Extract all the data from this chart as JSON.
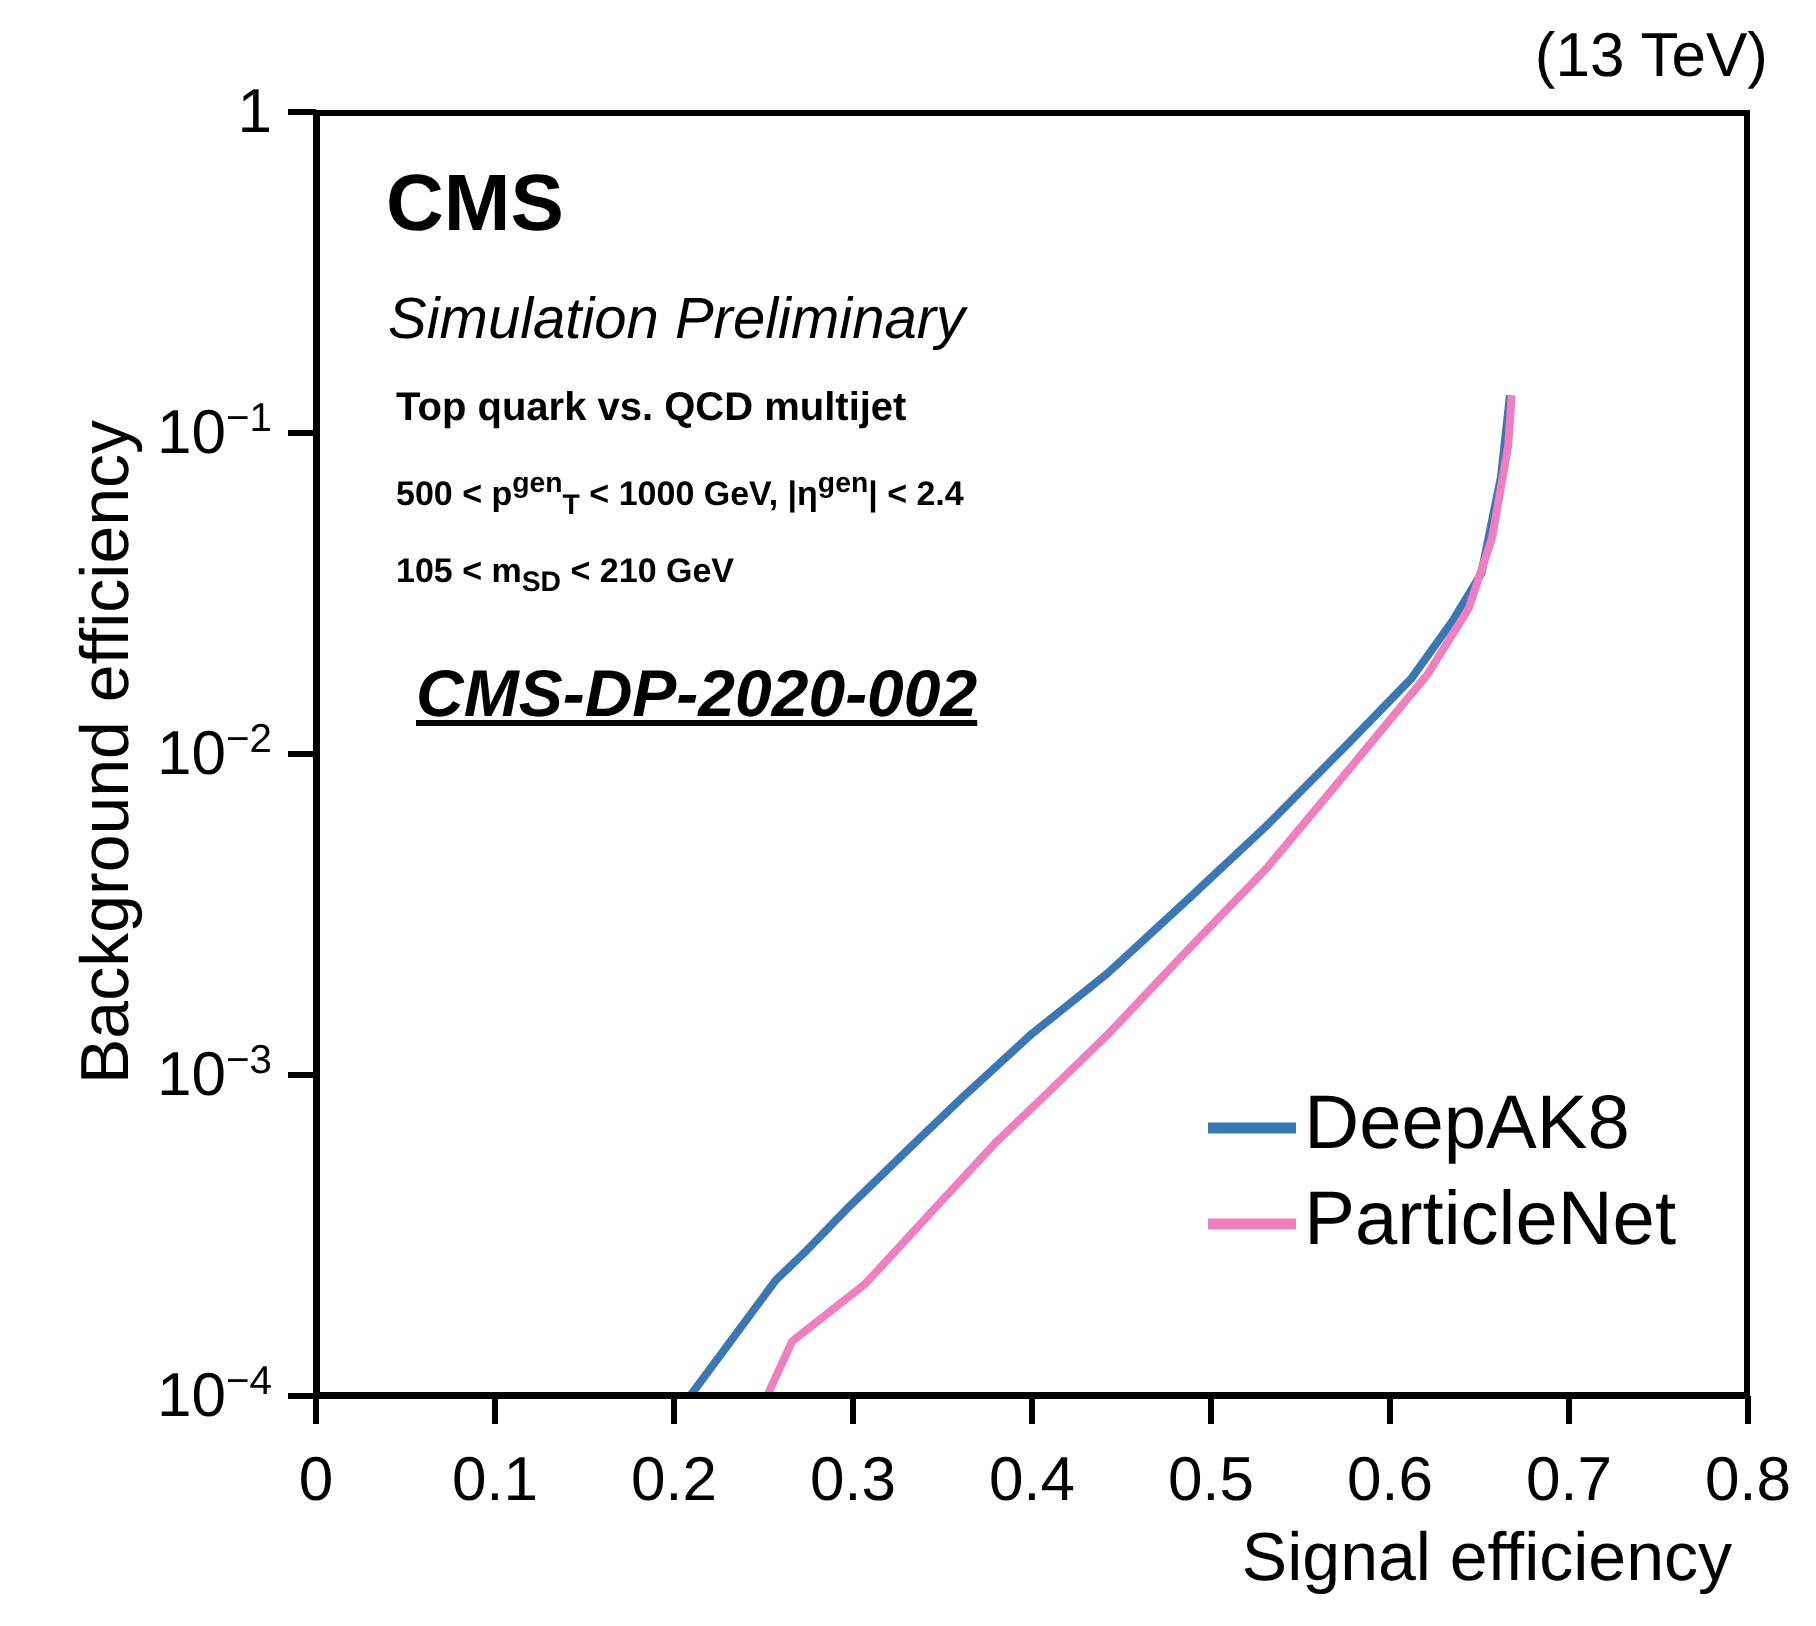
{
  "chart_data": {
    "type": "line",
    "xlabel": "Signal efficiency",
    "ylabel": "Background efficiency",
    "log": "y",
    "xlim": [
      0,
      0.8
    ],
    "xticks": [
      0,
      0.1,
      0.2,
      0.3,
      0.4,
      0.5,
      0.6,
      0.7,
      0.8
    ],
    "ylim": [
      0.0001,
      1
    ],
    "yticks": [
      {
        "value": 0.0001,
        "label": "10$^{−4}$"
      },
      {
        "value": 0.001,
        "label": "10$^{−3}$"
      },
      {
        "value": 0.01,
        "label": "10$^{−2}$"
      },
      {
        "value": 0.1,
        "label": "10$^{−1}$"
      },
      1
    ],
    "grid": false,
    "legend": "bottom right",
    "marker": "none",
    "line_style": "solid",
    "annotations": [
      "(13 TeV)",
      "CMS",
      "Simulation Preliminary",
      "Top quark vs. QCD multijet",
      "500 < p$^{gen}$$_{T}$ < 1000 GeV, |η$^{gen}$| < 2.4",
      "105 < m$_{SD}$ < 210 GeV",
      "CMS-DP-2020-002"
    ],
    "series": [
      {
        "name": "DeepAK8",
        "color": "#3a78b5",
        "x": [
          0.209,
          0.257,
          0.273,
          0.298,
          0.334,
          0.361,
          0.399,
          0.442,
          0.487,
          0.531,
          0.576,
          0.612,
          0.635,
          0.651,
          0.662,
          0.667
        ],
        "values": [
          0.0001,
          0.00023,
          0.00028,
          0.00039,
          0.00061,
          0.00085,
          0.00133,
          0.00207,
          0.00352,
          0.00597,
          0.0107,
          0.0172,
          0.026,
          0.0365,
          0.073,
          0.131
        ]
      },
      {
        "name": "ParticleNet",
        "color": "#f07fbf",
        "x": [
          0.252,
          0.266,
          0.307,
          0.343,
          0.379,
          0.406,
          0.442,
          0.487,
          0.531,
          0.576,
          0.621,
          0.644,
          0.657,
          0.666,
          0.668
        ],
        "values": [
          0.0001,
          0.000148,
          0.000224,
          0.00037,
          0.00061,
          0.00085,
          0.00133,
          0.00245,
          0.0044,
          0.0088,
          0.0177,
          0.0284,
          0.047,
          0.091,
          0.131
        ]
      }
    ]
  }
}
